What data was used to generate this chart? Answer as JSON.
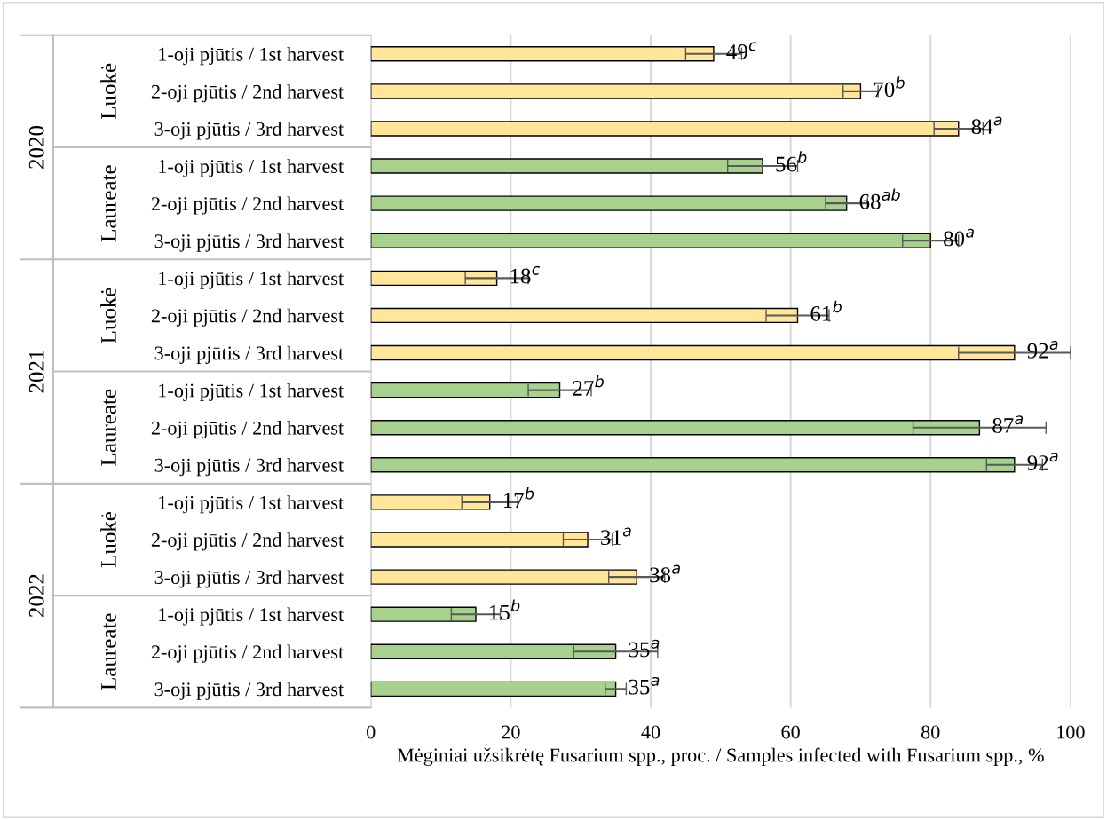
{
  "chart_data": {
    "type": "bar",
    "orientation": "horizontal",
    "xlabel": "Mėginiai užsikrėtę Fusarium spp., proc. / Samples infected with Fusarium spp., %",
    "categories": [
      "1-oji pjūtis / 1st harvest",
      "2-oji pjūtis / 2nd harvest",
      "3-oji pjūtis / 3rd harvest",
      "1-oji pjūtis / 1st harvest",
      "2-oji pjūtis / 2nd harvest",
      "3-oji pjūtis / 3rd harvest",
      "1-oji pjūtis / 1st harvest",
      "2-oji pjūtis / 2nd harvest",
      "3-oji pjūtis / 3rd harvest",
      "1-oji pjūtis / 1st harvest",
      "2-oji pjūtis / 2nd harvest",
      "3-oji pjūtis / 3rd harvest",
      "1-oji pjūtis / 1st harvest",
      "2-oji pjūtis / 2nd harvest",
      "3-oji pjūtis / 3rd harvest",
      "1-oji pjūtis / 1st harvest",
      "2-oji pjūtis / 2nd harvest",
      "3-oji pjūtis / 3rd harvest"
    ],
    "values": [
      49,
      70,
      84,
      56,
      68,
      80,
      18,
      61,
      92,
      27,
      87,
      92,
      17,
      31,
      38,
      15,
      35,
      35
    ],
    "errors": [
      4,
      2.5,
      3.5,
      5,
      3,
      4,
      4.5,
      4.5,
      8,
      4.5,
      9.5,
      4,
      4,
      3.5,
      4,
      3.5,
      6,
      1.5
    ],
    "value_labels": [
      "49$^{c}$",
      "70$^{b}$",
      "84$^{a}$",
      "56$^{b}$",
      "68$^{ab}$",
      "80$^{a}$",
      "18$^{c}$",
      "61$^{b}$",
      "92$^{a}$",
      "27$^{b}$",
      "87$^{a}$",
      "92$^{a}$",
      "17$^{b}$",
      "31$^{a}$",
      "38$^{a}$",
      "15$^{b}$",
      "35$^{a}$",
      "35$^{a}$"
    ],
    "colors": [
      "#ffe699",
      "#ffe699",
      "#ffe699",
      "#a9d18e",
      "#a9d18e",
      "#a9d18e",
      "#ffe699",
      "#ffe699",
      "#ffe699",
      "#a9d18e",
      "#a9d18e",
      "#a9d18e",
      "#ffe699",
      "#ffe699",
      "#ffe699",
      "#a9d18e",
      "#a9d18e",
      "#a9d18e"
    ],
    "annotations": [
      "Luokė",
      "Laureate",
      "Luokė",
      "Laureate",
      "Luokė",
      "Laureate",
      "2020",
      "2021",
      "2022"
    ],
    "xlim": [
      0,
      100
    ],
    "xticks": [
      0,
      20,
      40,
      60,
      80,
      100
    ],
    "grid": "x"
  }
}
